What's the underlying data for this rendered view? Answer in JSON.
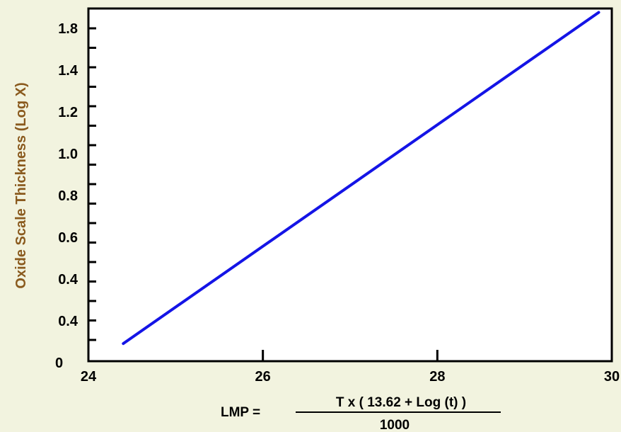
{
  "chart_data": {
    "type": "line",
    "title": "",
    "xlabel": "LMP =",
    "xlabel_formula_numerator": "T x ( 13.62 + Log (t) )",
    "xlabel_formula_denominator": "1000",
    "ylabel": "Oxide Scale Thickness (Log X)",
    "x_ticks": [
      "24",
      "26",
      "28",
      "30"
    ],
    "x_tick_values": [
      24,
      26,
      28,
      30
    ],
    "y_ticks": [
      "0",
      "0.4",
      "0.4",
      "0.6",
      "0.8",
      "1.0",
      "1.2",
      "1.4",
      "1.8"
    ],
    "xlim": [
      24,
      30
    ],
    "ylim": [
      0,
      1.8
    ],
    "grid": false,
    "series": [
      {
        "color": "#1414e6",
        "x": [
          24.4,
          29.85
        ],
        "y": [
          0.09,
          1.78
        ]
      }
    ]
  }
}
